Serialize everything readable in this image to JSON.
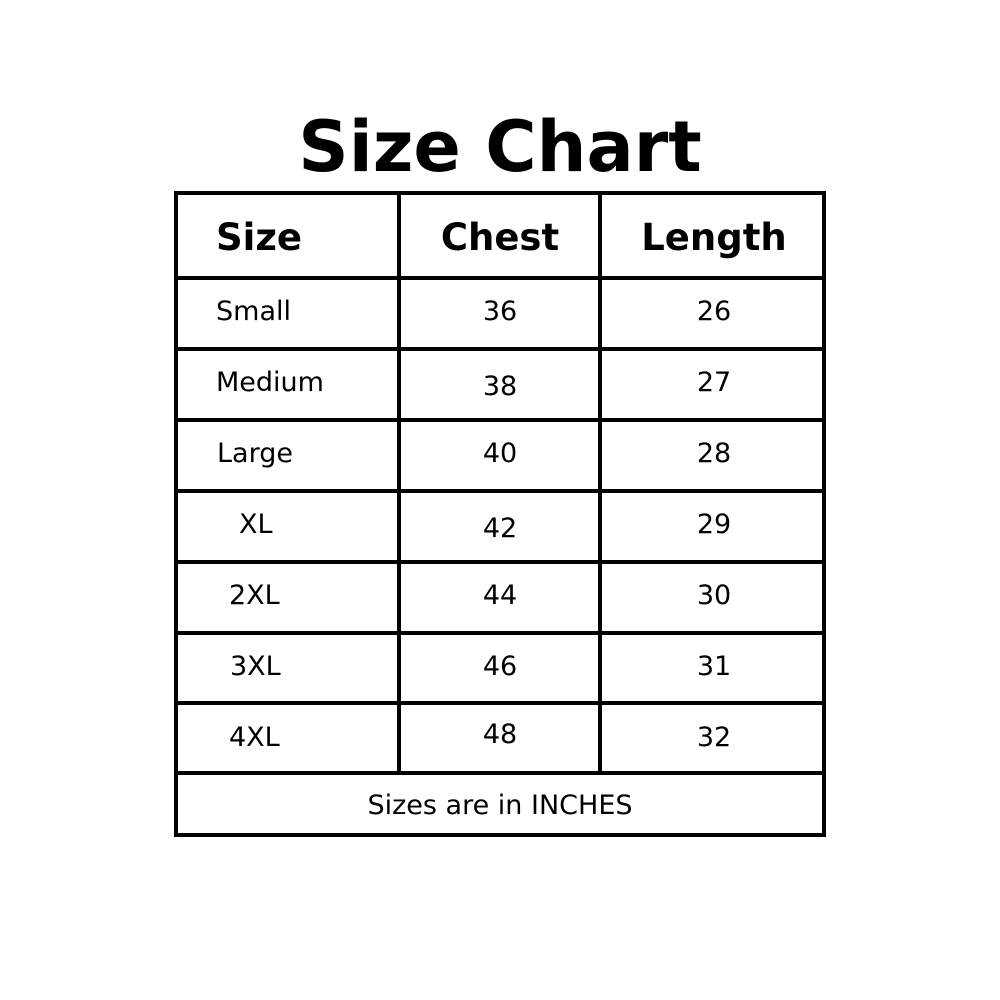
{
  "title": "Size Chart",
  "table": {
    "headers": [
      "Size",
      "Chest",
      "Length"
    ],
    "rows": [
      [
        "Small",
        "36",
        "26"
      ],
      [
        "Medium",
        "38",
        "27"
      ],
      [
        "Large",
        "40",
        "28"
      ],
      [
        "XL",
        "42",
        "29"
      ],
      [
        "2XL",
        "44",
        "30"
      ],
      [
        "3XL",
        "46",
        "31"
      ],
      [
        "4XL",
        "48",
        "32"
      ]
    ],
    "footer": "Sizes are in INCHES"
  },
  "colors": {
    "text": "#000000",
    "border": "#000000",
    "background": "#ffffff"
  }
}
